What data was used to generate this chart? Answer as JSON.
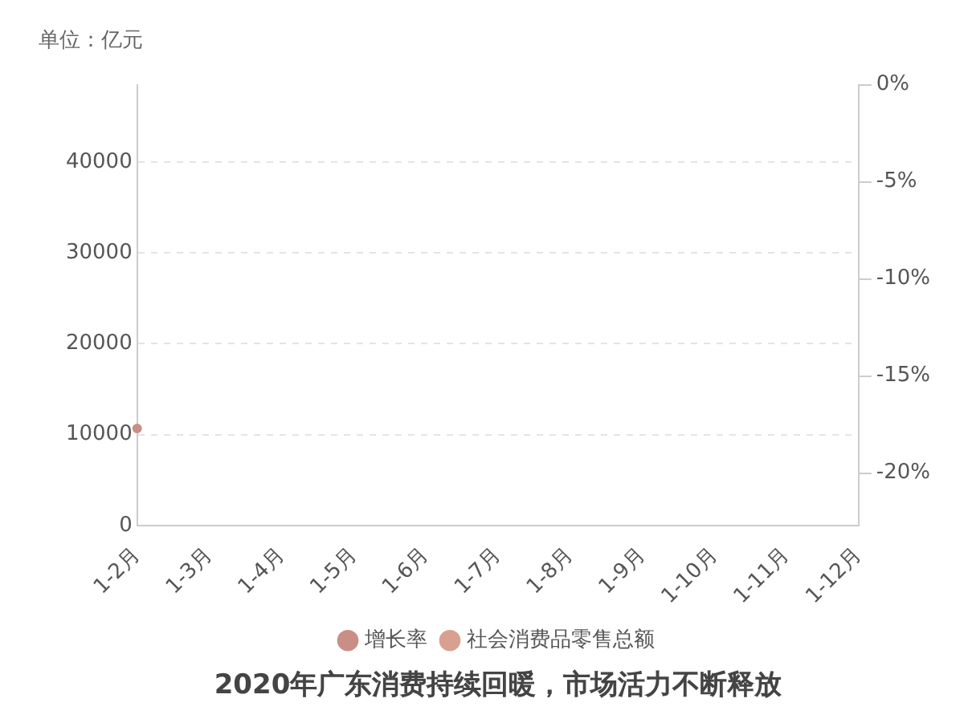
{
  "chart_data": {
    "type": "line",
    "title": "2020年广东消费持续回暖，市场活力不断释放",
    "annotations": [
      "单位：亿元"
    ],
    "categories": [
      "1-2月",
      "1-3月",
      "1-4月",
      "1-5月",
      "1-6月",
      "1-7月",
      "1-8月",
      "1-9月",
      "1-10月",
      "1-11月",
      "1-12月"
    ],
    "series": [
      {
        "name": "增长率",
        "color": "#c98f86",
        "axis": "y2",
        "values": [
          -17.7,
          null,
          null,
          null,
          null,
          null,
          null,
          null,
          null,
          null,
          null
        ]
      },
      {
        "name": "社会消费品零售总额",
        "color": "#d9a08f",
        "values": [
          null,
          null,
          null,
          null,
          null,
          null,
          null,
          null,
          null,
          null,
          null
        ]
      }
    ],
    "ylim": [
      0,
      48500
    ],
    "yticks": [
      0,
      10000,
      20000,
      30000,
      40000
    ],
    "y2lim": [
      -22.7,
      0
    ],
    "y2ticks": [
      {
        "value": -20,
        "label": "-20%"
      },
      {
        "value": -15,
        "label": "-15%"
      },
      {
        "value": -10,
        "label": "-10%"
      },
      {
        "value": -5,
        "label": "-5%"
      },
      {
        "value": 0,
        "label": "0%"
      }
    ],
    "grid": "y",
    "legend": "bottom",
    "marker": "circle"
  }
}
